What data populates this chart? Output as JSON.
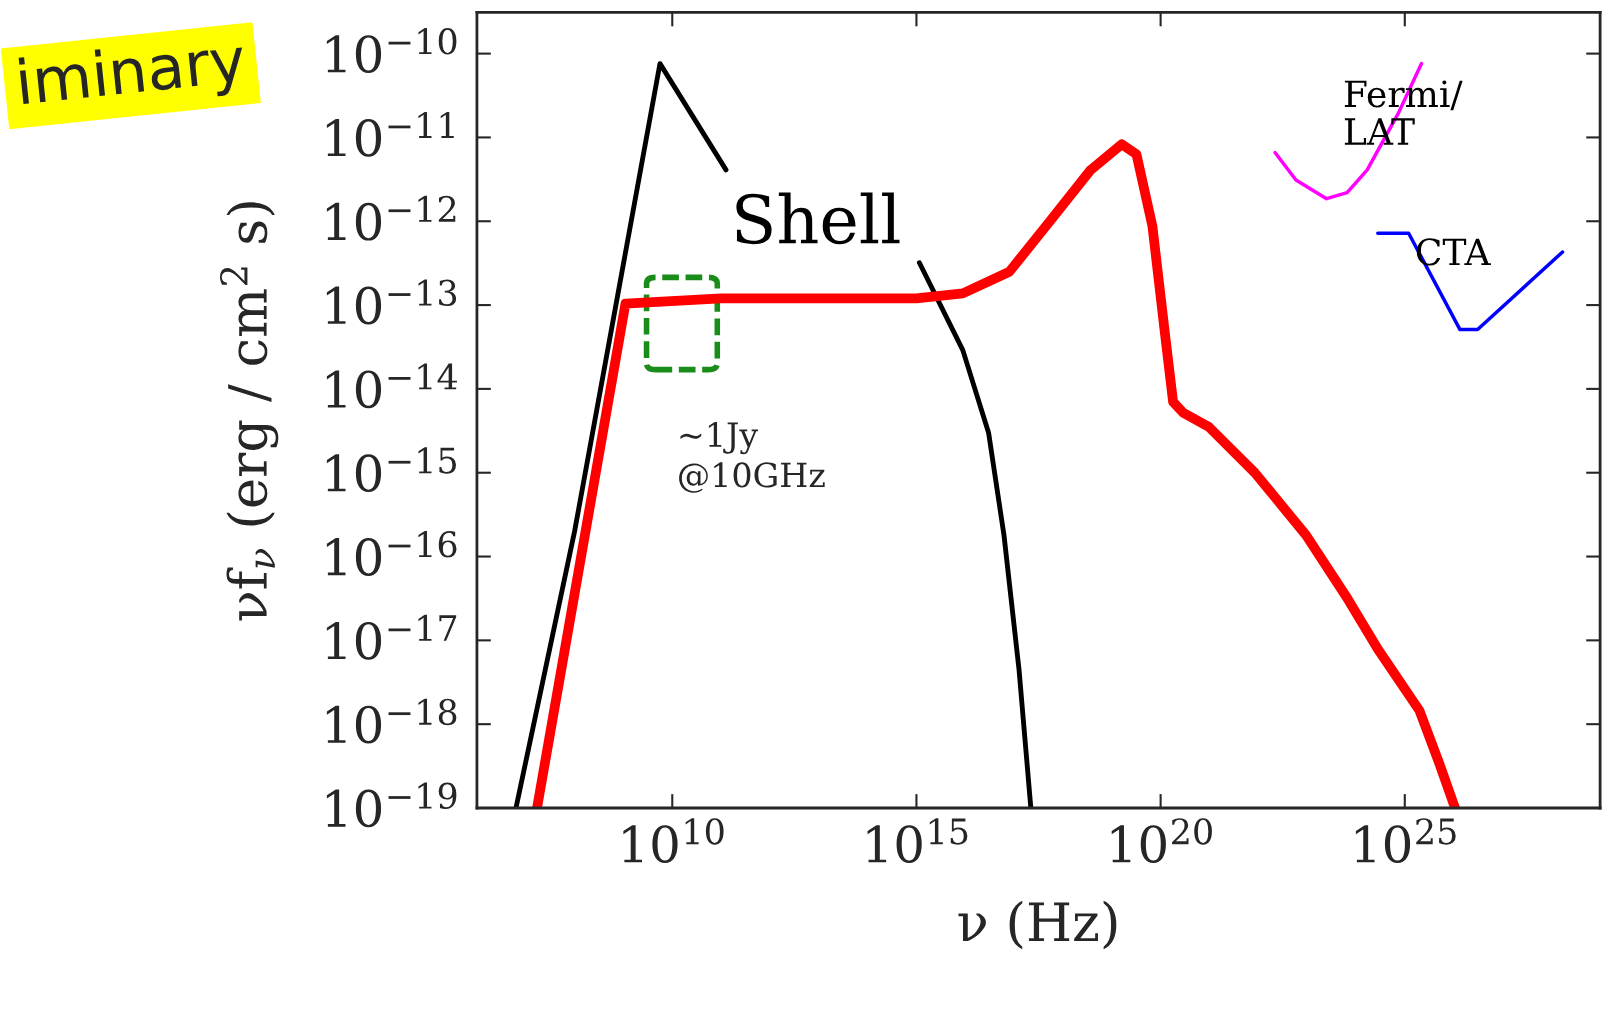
{
  "chart_data": {
    "type": "line",
    "xlabel": "ν (Hz)",
    "ylabel": "νf$_{ν}$ (erg / cm$^{2}$ s)",
    "log": "xy",
    "xlim": [
      1000000.0,
      1e+29
    ],
    "ylim": [
      1e-19,
      3.1e-10
    ],
    "xticks": [
      {
        "value": 10000000000.0,
        "label": "10$^{10}$"
      },
      {
        "value": 1000000000000000.0,
        "label": "10$^{15}$"
      },
      {
        "value": 1e+20,
        "label": "10$^{20}$"
      },
      {
        "value": 1e+25,
        "label": "10$^{25}$"
      }
    ],
    "yticks": [
      {
        "value": 1e-10,
        "label": "10$^{−10}$"
      },
      {
        "value": 1e-11,
        "label": "10$^{−11}$"
      },
      {
        "value": 1e-12,
        "label": "10$^{−12}$"
      },
      {
        "value": 1e-13,
        "label": "10$^{−13}$"
      },
      {
        "value": 1e-14,
        "label": "10$^{−14}$"
      },
      {
        "value": 1e-15,
        "label": "10$^{−15}$"
      },
      {
        "value": 1e-16,
        "label": "10$^{−16}$"
      },
      {
        "value": 1e-17,
        "label": "10$^{−17}$"
      },
      {
        "value": 1e-18,
        "label": "10$^{−18}$"
      },
      {
        "value": 1e-19,
        "label": "10$^{−19}$"
      }
    ],
    "grid": false,
    "marker": "none",
    "series": [
      {
        "name": "Shell",
        "color": "#000000",
        "line_style": "solid",
        "x": [
          6300000.0,
          100000000.0,
          5600000000.0,
          126000000000.0,
          2000000000000.0,
          1150000000000000.0,
          8900000000000000.0,
          3e+16,
          6.2e+16,
          1.26e+17,
          2.2e+17
        ],
        "values": [
          1e-19,
          2e-16,
          7.6e-11,
          4.1e-12,
          null,
          3.2e-13,
          2.9e-14,
          3e-15,
          1.8e-16,
          4.5e-18,
          1e-19
        ]
      },
      {
        "color": "#ff0000",
        "line_style": "solid",
        "x": [
          17000000.0,
          1100000000.0,
          100000000000.0,
          1000000000000000.0,
          8900000000000000.0,
          8e+16,
          5.4e+17,
          3.7e+18,
          1.6e+19,
          3.2e+19,
          6.8e+19,
          1.26e+20,
          1.8e+20,
          2.9e+20,
          9.8e+20,
          8.5e+21,
          9.5e+22,
          6.6e+23,
          2.8e+24,
          2e+25,
          5e+25,
          1.07e+26
        ],
        "values": [
          1e-19,
          1.04e-13,
          1.2e-13,
          1.2e-13,
          1.38e-13,
          2.5e-13,
          1e-12,
          4.1e-12,
          8.3e-12,
          6.3e-12,
          8.7e-13,
          4e-14,
          7e-15,
          5.2e-15,
          3.5e-15,
          1e-15,
          1.8e-16,
          3.2e-17,
          7.9e-18,
          1.45e-18,
          3.5e-19,
          1e-19
        ]
      },
      {
        "name": "Fermi/\nLAT",
        "color": "#ff00ff",
        "line_style": "solid",
        "x": [
          2.2e+22,
          5.9e+22,
          2.5e+23,
          6.6e+23,
          1.7e+24,
          7.4e+24,
          2.2e+25
        ],
        "values": [
          6.6e-12,
          3.1e-12,
          1.86e-12,
          2.2e-12,
          4.1e-12,
          1.95e-11,
          7.6e-11
        ]
      },
      {
        "name": "CTA",
        "color": "#0000ff",
        "line_style": "solid",
        "x": [
          2.8e+24,
          1.2e+25,
          1.35e+26,
          3.1e+26,
          1.7e+28
        ],
        "values": [
          7.2e-13,
          7.2e-13,
          5.1e-14,
          5.1e-14,
          4.3e-13
        ]
      }
    ],
    "annotations": [
      "~1Jy\n@10GHz",
      "iminary"
    ]
  }
}
